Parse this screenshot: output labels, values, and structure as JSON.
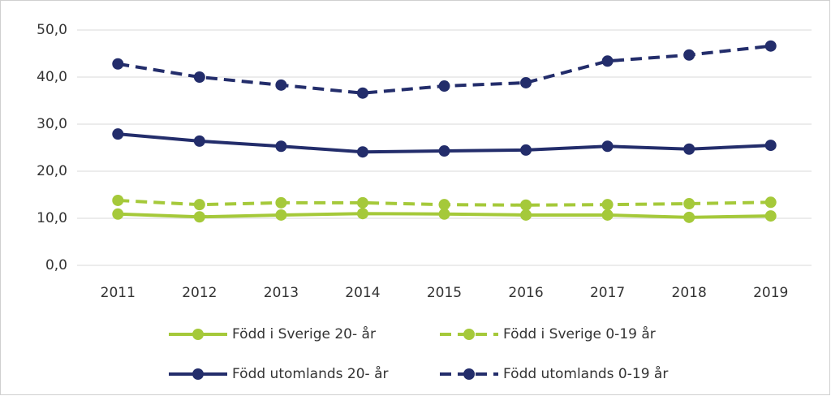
{
  "chart_data": {
    "type": "line",
    "categories": [
      "2011",
      "2012",
      "2013",
      "2014",
      "2015",
      "2016",
      "2017",
      "2018",
      "2019"
    ],
    "series": [
      {
        "name": "Född i Sverige 20- år",
        "color": "#a5c93a",
        "dash": false,
        "values": [
          10.9,
          10.3,
          10.7,
          11.0,
          10.9,
          10.7,
          10.7,
          10.2,
          10.5
        ]
      },
      {
        "name": "Född i Sverige 0-19 år",
        "color": "#a5c93a",
        "dash": true,
        "values": [
          13.8,
          12.9,
          13.3,
          13.3,
          12.9,
          12.8,
          12.9,
          13.1,
          13.4
        ]
      },
      {
        "name": "Född utomlands 20- år",
        "color": "#232d6b",
        "dash": false,
        "values": [
          27.9,
          26.4,
          25.3,
          24.1,
          24.3,
          24.5,
          25.3,
          24.7,
          25.5
        ]
      },
      {
        "name": "Född utomlands 0-19 år",
        "color": "#232d6b",
        "dash": true,
        "values": [
          42.8,
          40.0,
          38.3,
          36.6,
          38.1,
          38.8,
          43.4,
          44.7,
          46.6
        ]
      }
    ],
    "ylim": [
      0,
      50
    ],
    "yticks": [
      {
        "value": 0,
        "label": "0,0"
      },
      {
        "value": 10,
        "label": "10,0"
      },
      {
        "value": 20,
        "label": "20,0"
      },
      {
        "value": 30,
        "label": "30,0"
      },
      {
        "value": 40,
        "label": "40,0"
      },
      {
        "value": 50,
        "label": "50,0"
      }
    ],
    "grid": true,
    "legend": "bottom"
  }
}
